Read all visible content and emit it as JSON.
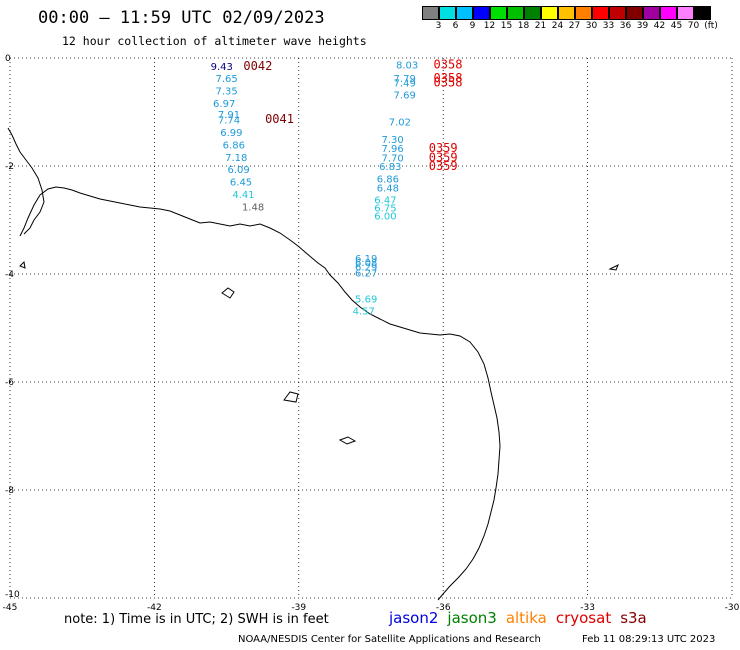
{
  "header": {
    "title": "00:00 – 11:59 UTC 02/09/2023",
    "subtitle": "12 hour collection of altimeter wave heights"
  },
  "legend": {
    "unit": "(ft)",
    "levels": [
      {
        "label": "3",
        "color": "#808080"
      },
      {
        "label": "6",
        "color": "#00e0e0"
      },
      {
        "label": "9",
        "color": "#00c0ff"
      },
      {
        "label": "12",
        "color": "#0000ff"
      },
      {
        "label": "15",
        "color": "#00e000"
      },
      {
        "label": "18",
        "color": "#00c000"
      },
      {
        "label": "21",
        "color": "#008000"
      },
      {
        "label": "24",
        "color": "#ffff00"
      },
      {
        "label": "27",
        "color": "#ffc000"
      },
      {
        "label": "30",
        "color": "#ff8000"
      },
      {
        "label": "33",
        "color": "#ff0000"
      },
      {
        "label": "36",
        "color": "#c00000"
      },
      {
        "label": "39",
        "color": "#800000"
      },
      {
        "label": "42",
        "color": "#a000a0"
      },
      {
        "label": "45",
        "color": "#ff00ff"
      },
      {
        "label": "70",
        "color": "#ff80ff"
      },
      {
        "label": "",
        "color": "#000000"
      }
    ]
  },
  "axes": {
    "lon_ticks": [
      "-45",
      "-42",
      "-39",
      "-36",
      "-33",
      "-30"
    ],
    "lat_ticks": [
      "0",
      "-2",
      "-4",
      "-6",
      "-8",
      "-10"
    ]
  },
  "map_data": {
    "lon_range": [
      -45,
      -30
    ],
    "lat_range": [
      -10,
      0
    ],
    "observations": [
      {
        "lon": -40.6,
        "lat": -0.15,
        "label": "9.43",
        "color": "#000080"
      },
      {
        "lon": -40.5,
        "lat": -0.37,
        "label": "7.65",
        "color": "#1e9ad8"
      },
      {
        "lon": -40.5,
        "lat": -0.6,
        "label": "7.35",
        "color": "#1e9ad8"
      },
      {
        "lon": -40.55,
        "lat": -0.83,
        "label": "6.97",
        "color": "#1e9ad8"
      },
      {
        "lon": -40.45,
        "lat": -1.04,
        "label": "7.91",
        "color": "#1e9ad8"
      },
      {
        "lon": -40.45,
        "lat": -1.14,
        "label": "7.74",
        "color": "#1e9ad8"
      },
      {
        "lon": -40.4,
        "lat": -1.37,
        "label": "6.99",
        "color": "#1e9ad8"
      },
      {
        "lon": -40.35,
        "lat": -1.6,
        "label": "6.86",
        "color": "#1e9ad8"
      },
      {
        "lon": -40.3,
        "lat": -1.83,
        "label": "7.18",
        "color": "#1e9ad8"
      },
      {
        "lon": -40.25,
        "lat": -2.06,
        "label": "6.09",
        "color": "#1e9ad8"
      },
      {
        "lon": -40.2,
        "lat": -2.29,
        "label": "6.45",
        "color": "#1e9ad8"
      },
      {
        "lon": -40.15,
        "lat": -2.52,
        "label": "4.41",
        "color": "#20c8d8"
      },
      {
        "lon": -39.95,
        "lat": -2.75,
        "label": "1.48",
        "color": "#606060"
      },
      {
        "lon": -36.75,
        "lat": -0.12,
        "label": "8.03",
        "color": "#1e9ad8"
      },
      {
        "lon": -36.8,
        "lat": -0.37,
        "label": "7.79",
        "color": "#1e9ad8"
      },
      {
        "lon": -36.8,
        "lat": -0.45,
        "label": "7.49",
        "color": "#1e9ad8"
      },
      {
        "lon": -36.8,
        "lat": -0.68,
        "label": "7.69",
        "color": "#1e9ad8"
      },
      {
        "lon": -36.9,
        "lat": -1.18,
        "label": "7.02",
        "color": "#1e9ad8"
      },
      {
        "lon": -37.05,
        "lat": -1.5,
        "label": "7.30",
        "color": "#1e9ad8"
      },
      {
        "lon": -37.05,
        "lat": -1.67,
        "label": "7.96",
        "color": "#1e9ad8"
      },
      {
        "lon": -37.05,
        "lat": -1.84,
        "label": "7.70",
        "color": "#1e9ad8"
      },
      {
        "lon": -37.1,
        "lat": -2.0,
        "label": "6.83",
        "color": "#1e9ad8"
      },
      {
        "lon": -37.15,
        "lat": -2.23,
        "label": "6.86",
        "color": "#1e9ad8"
      },
      {
        "lon": -37.15,
        "lat": -2.4,
        "label": "6.48",
        "color": "#1e9ad8"
      },
      {
        "lon": -37.2,
        "lat": -2.62,
        "label": "6.47",
        "color": "#20c8d8"
      },
      {
        "lon": -37.2,
        "lat": -2.77,
        "label": "6.75",
        "color": "#20c8d8"
      },
      {
        "lon": -37.2,
        "lat": -2.92,
        "label": "6.00",
        "color": "#20c8d8"
      },
      {
        "lon": -37.6,
        "lat": -3.7,
        "label": "6.19",
        "color": "#1e9ad8"
      },
      {
        "lon": -37.6,
        "lat": -3.78,
        "label": "6.08",
        "color": "#1e9ad8"
      },
      {
        "lon": -37.6,
        "lat": -3.86,
        "label": "6.29",
        "color": "#1e9ad8"
      },
      {
        "lon": -37.6,
        "lat": -3.97,
        "label": "6.27",
        "color": "#1e9ad8"
      },
      {
        "lon": -37.6,
        "lat": -4.45,
        "label": "5.69",
        "color": "#20c8d8"
      },
      {
        "lon": -37.65,
        "lat": -4.68,
        "label": "4.57",
        "color": "#20c8d8"
      }
    ],
    "pass_times": [
      {
        "lon": -39.85,
        "lat": -0.15,
        "label": "0042",
        "color": "#800000"
      },
      {
        "lon": -39.4,
        "lat": -1.13,
        "label": "0041",
        "color": "#800000"
      },
      {
        "lon": -35.9,
        "lat": -0.12,
        "label": "0358",
        "color": "#e00000"
      },
      {
        "lon": -35.9,
        "lat": -0.37,
        "label": "0358",
        "color": "#e00000"
      },
      {
        "lon": -35.9,
        "lat": -0.45,
        "label": "0358",
        "color": "#e00000"
      },
      {
        "lon": -36.0,
        "lat": -1.67,
        "label": "0359",
        "color": "#e00000"
      },
      {
        "lon": -36.0,
        "lat": -1.84,
        "label": "0359",
        "color": "#e00000"
      },
      {
        "lon": -36.0,
        "lat": -2.0,
        "label": "0359",
        "color": "#e00000"
      }
    ]
  },
  "footer": {
    "note": "note: 1) Time is in UTC; 2) SWH is in feet",
    "satellites": [
      {
        "name": "jason2",
        "color": "#0000e0"
      },
      {
        "name": "jason3",
        "color": "#008000"
      },
      {
        "name": "altika",
        "color": "#ff8000"
      },
      {
        "name": "cryosat",
        "color": "#e00000"
      },
      {
        "name": "s3a",
        "color": "#800000"
      }
    ],
    "credit": "NOAA/NESDIS Center for Satellite Applications and Research",
    "timestamp": "Feb 11 08:29:13 UTC 2023"
  }
}
